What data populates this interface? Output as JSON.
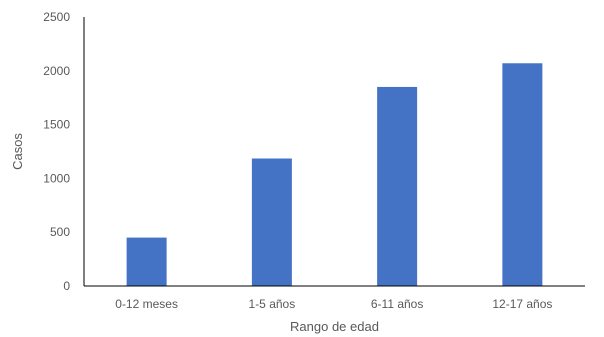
{
  "chart_data": {
    "type": "bar",
    "title": "",
    "xlabel": "Rango de edad",
    "ylabel": "Casos",
    "categories": [
      "0-12 meses",
      "1-5 años",
      "6-11 años",
      "12-17 años"
    ],
    "values": [
      450,
      1185,
      1850,
      2070
    ],
    "ylim": [
      0,
      2500
    ],
    "yticks": [
      "0",
      "500",
      "1000",
      "1500",
      "2000",
      "2500"
    ],
    "grid": false,
    "bar_color": "#4472C4",
    "axis_color": "#000000",
    "text_color": "#595959"
  }
}
